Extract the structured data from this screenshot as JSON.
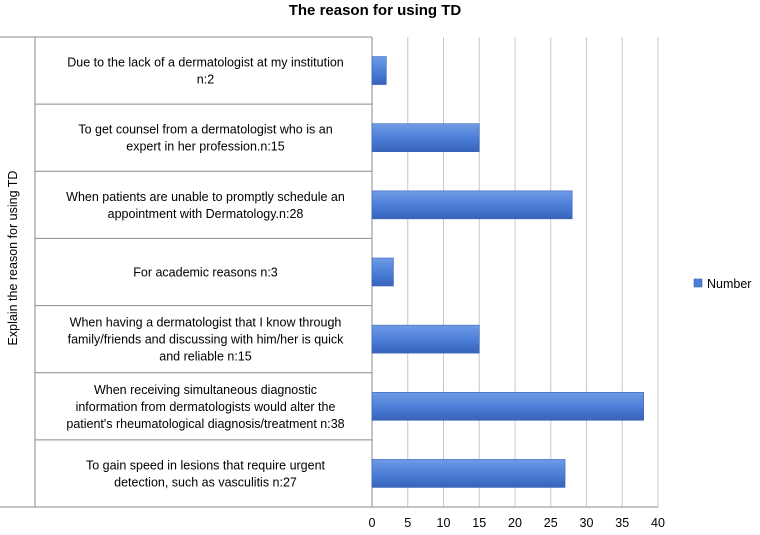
{
  "chart_data": {
    "type": "bar",
    "orientation": "horizontal",
    "title": "The reason for using TD",
    "xlabel": "",
    "ylabel": "Explain the reason for using TD",
    "xlim": [
      0,
      40
    ],
    "x_ticks": [
      "0",
      "5",
      "10",
      "15",
      "20",
      "25",
      "30",
      "35",
      "40"
    ],
    "grid": "vertical",
    "legend_position": "right",
    "bar_color": "#4a7dd6",
    "categories": [
      [
        "Due to the lack of a dermatologist at my institution",
        "n:2"
      ],
      [
        "To get counsel from a dermatologist who is an",
        "expert in her profession.n:15"
      ],
      [
        "When patients are unable to promptly schedule an",
        "appointment with Dermatology.n:28"
      ],
      [
        "For academic reasons n:3"
      ],
      [
        "When having a dermatologist that I know through",
        "family/friends and discussing with him/her is quick",
        "and reliable n:15"
      ],
      [
        "When receiving simultaneous diagnostic",
        "information from dermatologists would alter the",
        "patient's rheumatological diagnosis/treatment n:38"
      ],
      [
        "To gain speed in lesions that require urgent",
        "detection, such as vasculitis n:27"
      ]
    ],
    "series": [
      {
        "name": "Number",
        "values": [
          2,
          15,
          28,
          3,
          15,
          38,
          27
        ]
      }
    ]
  }
}
